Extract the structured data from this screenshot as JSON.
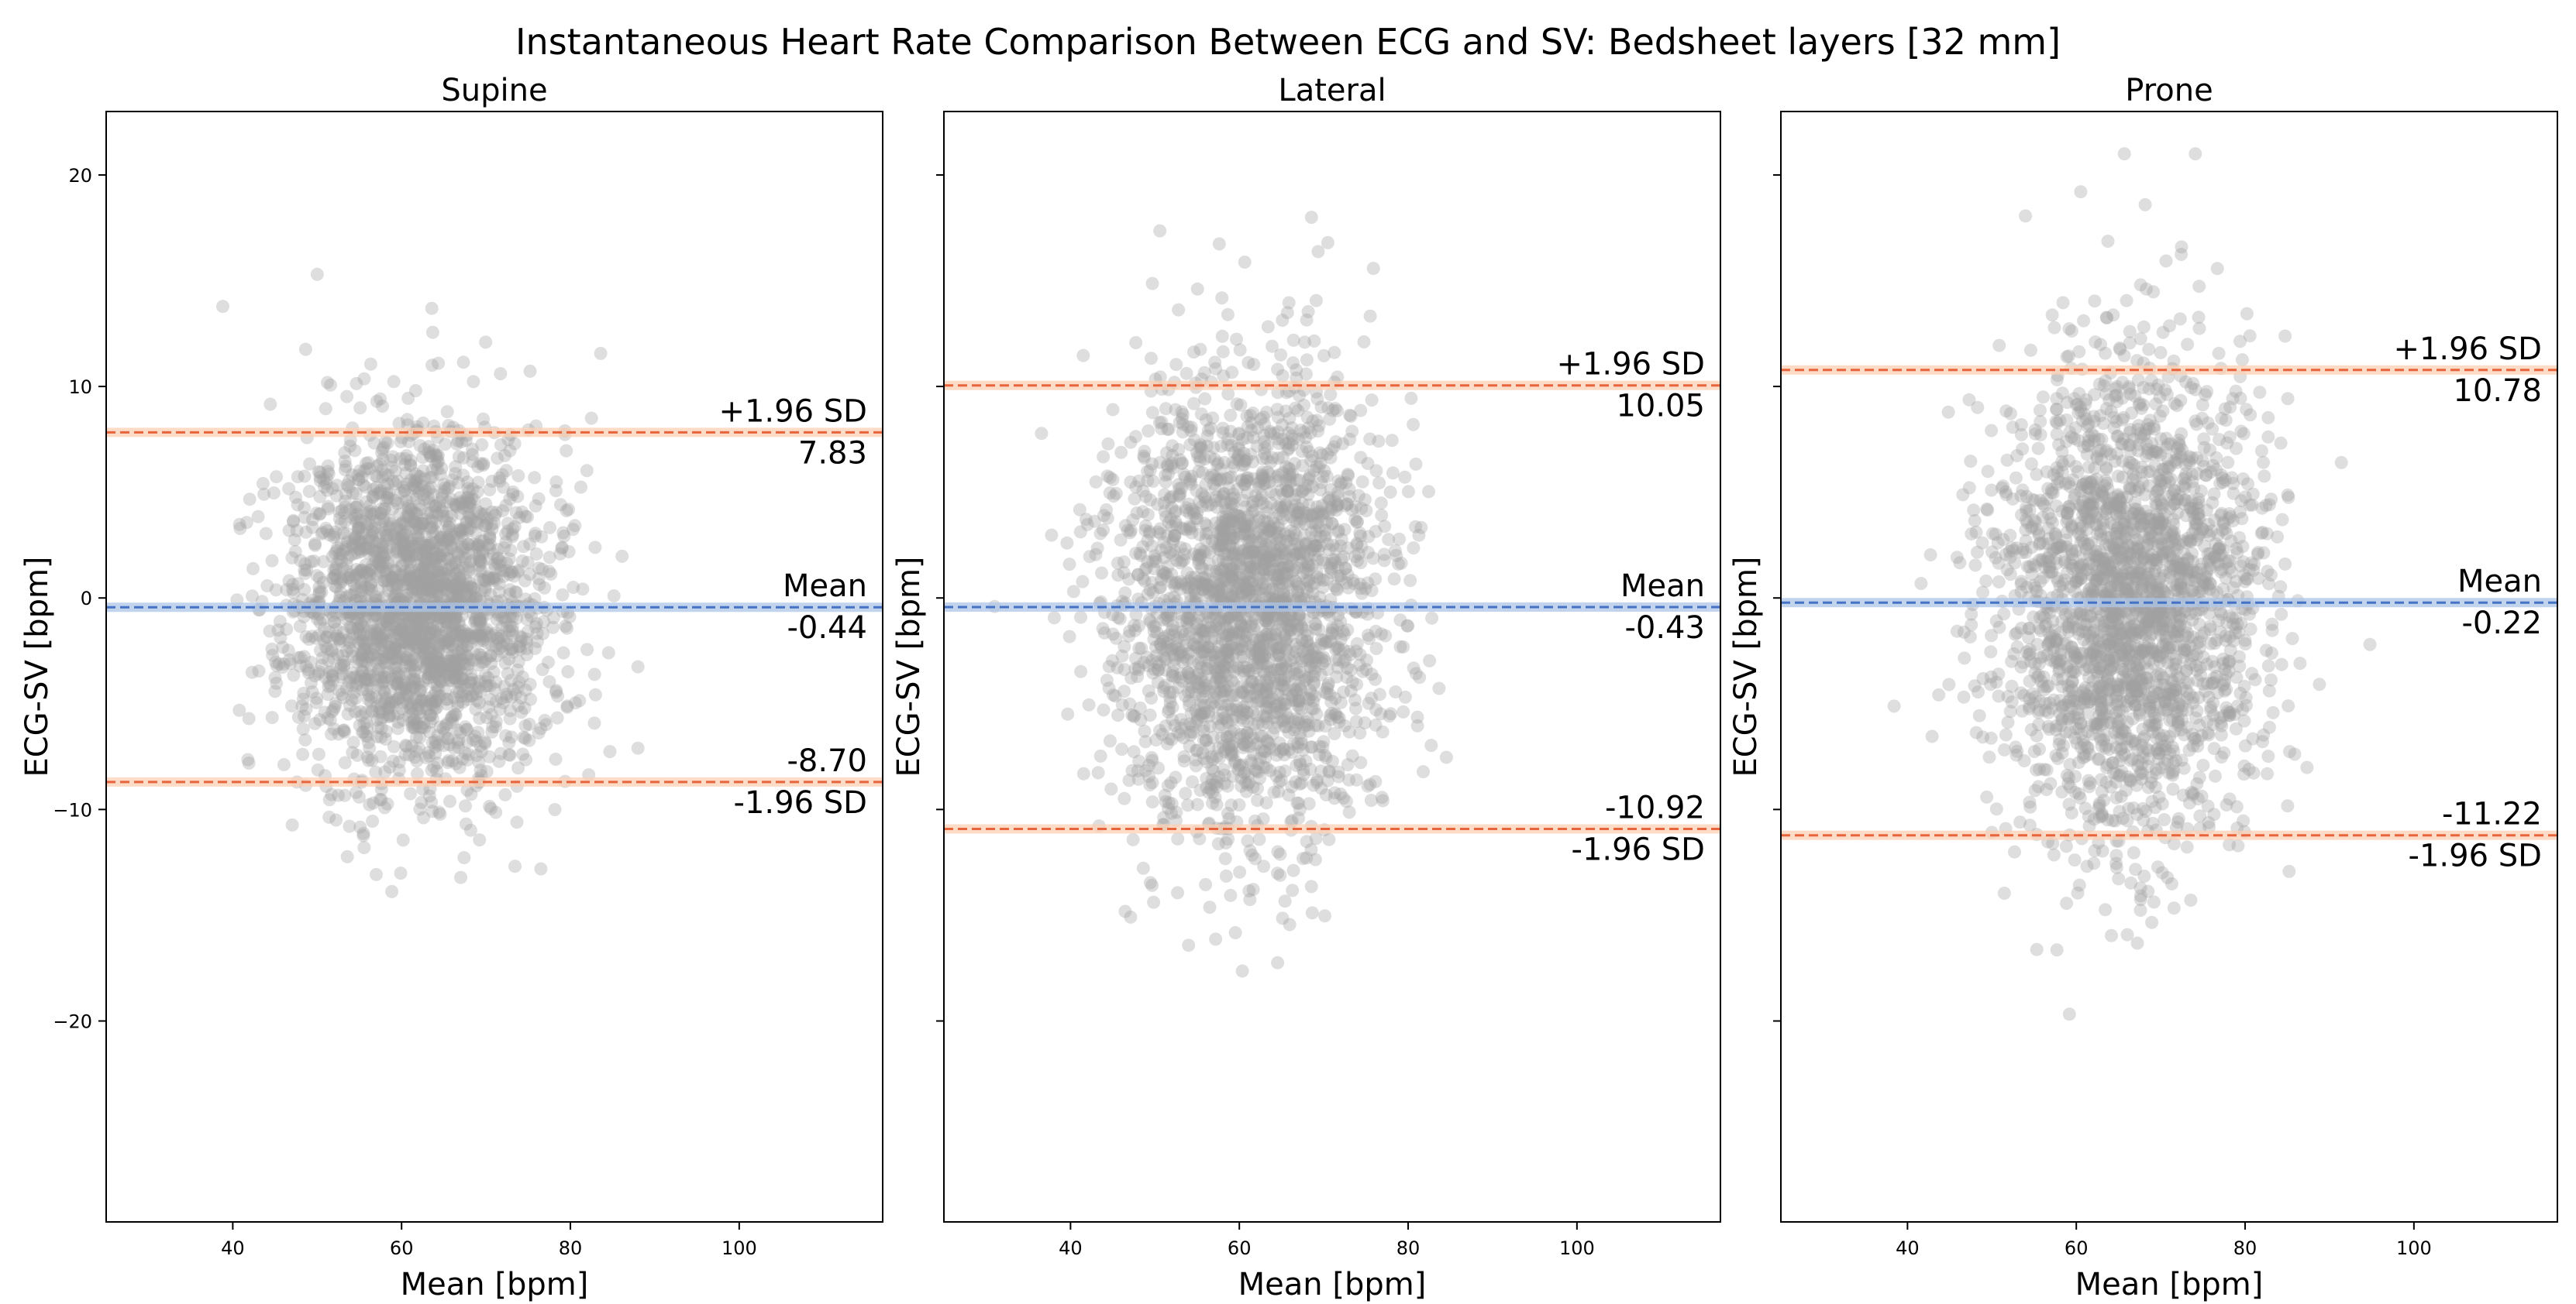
{
  "figure": {
    "title": "Instantaneous Heart Rate Comparison Between ECG and SV: Bedsheet layers [32 mm]"
  },
  "colors": {
    "point": "#a0a0a0",
    "mean_line": "#4472c4",
    "mean_band": "#aec4e8",
    "loa_line": "#e8643c",
    "loa_band": "#fbcfb4",
    "axis": "#000000"
  },
  "chart_data": [
    {
      "type": "scatter",
      "panel": "supine",
      "title": "Supine",
      "xlabel": "Mean [bpm]",
      "ylabel": "ECG-SV [bpm]",
      "xlim": [
        25,
        117
      ],
      "ylim": [
        -29.5,
        23
      ],
      "xticks": [
        40,
        60,
        80,
        100
      ],
      "yticks": [
        -20,
        -10,
        0,
        10,
        20
      ],
      "show_y_tick_labels": true,
      "grid": false,
      "mean": -0.44,
      "upper_loa": 7.83,
      "lower_loa": -8.7,
      "labels": {
        "upper_text": "+1.96 SD",
        "upper_value": "7.83",
        "mean_text": "Mean",
        "mean_value": "-0.44",
        "lower_value": "-8.70",
        "lower_text": "-1.96 SD"
      },
      "scatter": {
        "n": 2400,
        "center_x": 62,
        "center_y": -0.44,
        "sd_x": 7.5,
        "sd_y": 4.2,
        "x_range": [
          29,
          88
        ],
        "y_range": [
          -20,
          17
        ],
        "seed": 11
      }
    },
    {
      "type": "scatter",
      "panel": "lateral",
      "title": "Lateral",
      "xlabel": "Mean [bpm]",
      "ylabel": "ECG-SV [bpm]",
      "xlim": [
        25,
        117
      ],
      "ylim": [
        -29.5,
        23
      ],
      "xticks": [
        40,
        60,
        80,
        100
      ],
      "yticks": [
        -20,
        -10,
        0,
        10,
        20
      ],
      "show_y_tick_labels": false,
      "grid": false,
      "mean": -0.43,
      "upper_loa": 10.05,
      "lower_loa": -10.92,
      "labels": {
        "upper_text": "+1.96 SD",
        "upper_value": "10.05",
        "mean_text": "Mean",
        "mean_value": "-0.43",
        "lower_value": "-10.92",
        "lower_text": "-1.96 SD"
      },
      "scatter": {
        "n": 2400,
        "center_x": 61,
        "center_y": -0.43,
        "sd_x": 7.8,
        "sd_y": 5.3,
        "x_range": [
          31,
          96
        ],
        "y_range": [
          -23,
          18
        ],
        "seed": 23
      }
    },
    {
      "type": "scatter",
      "panel": "prone",
      "title": "Prone",
      "xlabel": "Mean [bpm]",
      "ylabel": "ECG-SV [bpm]",
      "xlim": [
        25,
        117
      ],
      "ylim": [
        -29.5,
        23
      ],
      "xticks": [
        40,
        60,
        80,
        100
      ],
      "yticks": [
        -20,
        -10,
        0,
        10,
        20
      ],
      "show_y_tick_labels": false,
      "grid": false,
      "mean": -0.22,
      "upper_loa": 10.78,
      "lower_loa": -11.22,
      "labels": {
        "upper_text": "+1.96 SD",
        "upper_value": "10.78",
        "mean_text": "Mean",
        "mean_value": "-0.22",
        "lower_value": "-11.22",
        "lower_text": "-1.96 SD"
      },
      "scatter": {
        "n": 2400,
        "center_x": 66,
        "center_y": -0.22,
        "sd_x": 7.5,
        "sd_y": 5.6,
        "x_range": [
          31,
          95
        ],
        "y_range": [
          -27.5,
          21
        ],
        "seed": 37
      }
    }
  ]
}
